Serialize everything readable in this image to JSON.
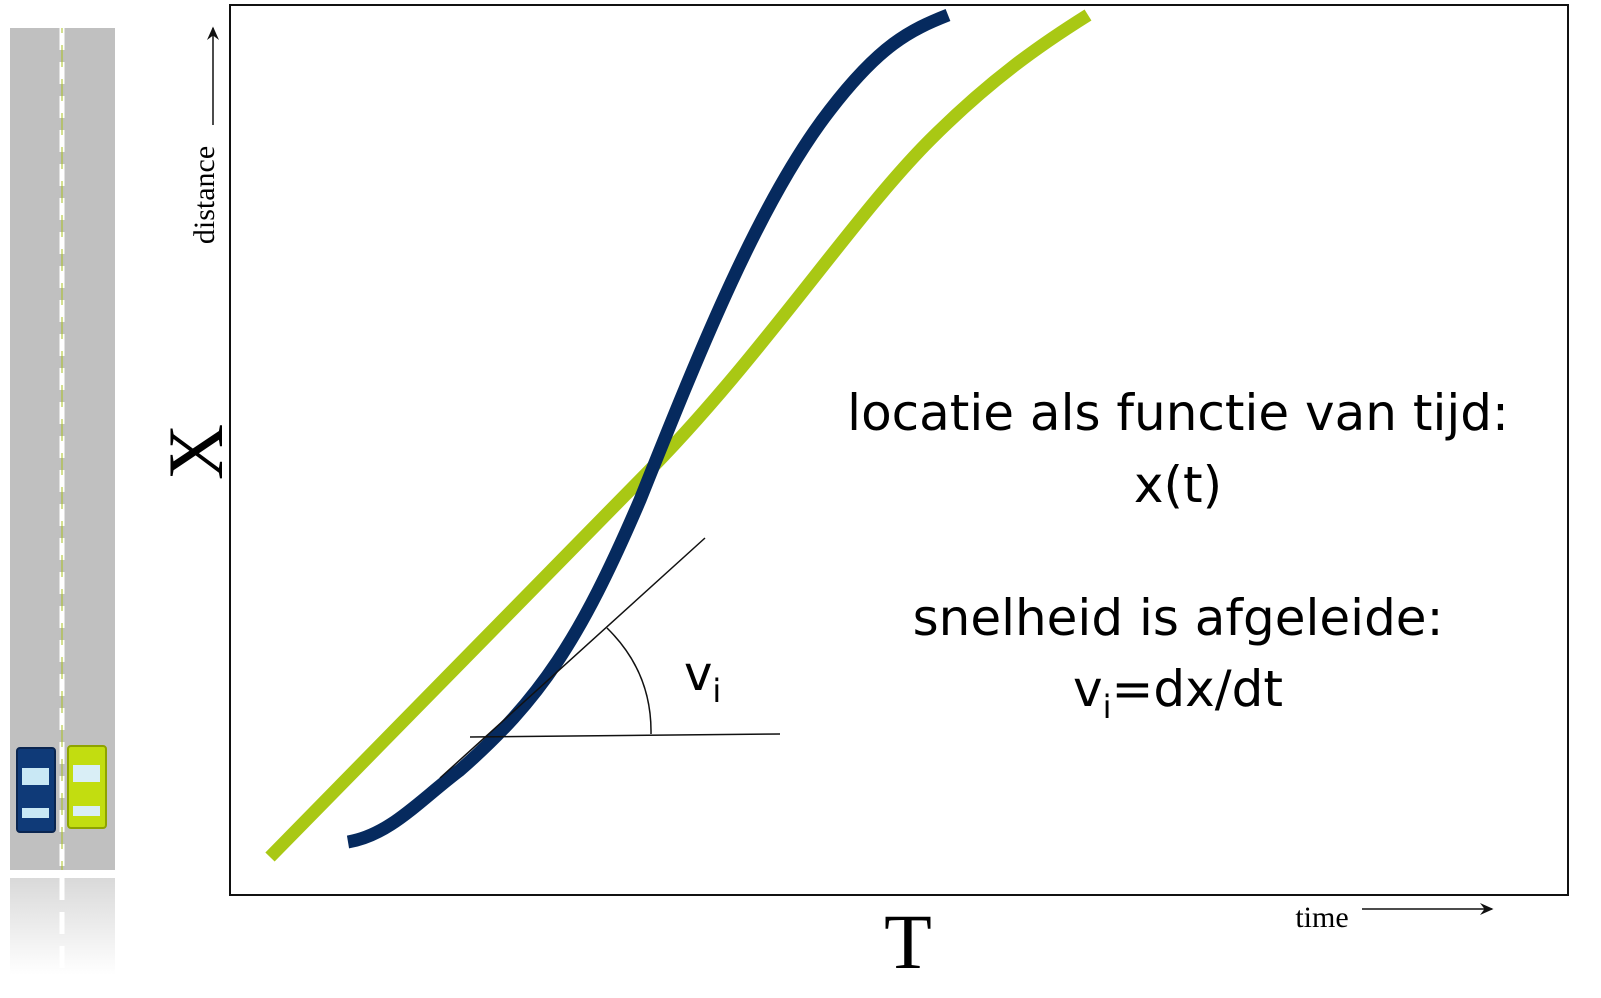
{
  "axes": {
    "y_caption": "distance",
    "y_symbol": "X",
    "x_symbol": "T",
    "x_caption": "time"
  },
  "tangent_label": {
    "symbol": "v",
    "subscript": "i"
  },
  "explanation": {
    "line1": "locatie als functie van tijd:",
    "line2": "x(t)",
    "line3": "snelheid is afgeleide:",
    "formula": {
      "symbol": "v",
      "subscript": "i",
      "rest": "=dx/dt"
    }
  }
}
